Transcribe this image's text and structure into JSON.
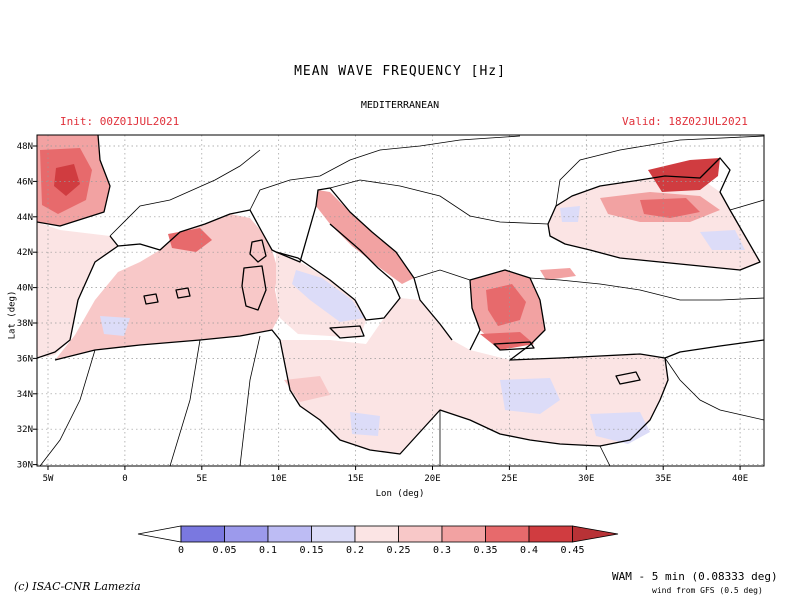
{
  "header": {
    "title": "MEAN WAVE FREQUENCY [Hz]",
    "region": "MEDITERRANEAN",
    "init": "Init: 00Z01JUL2021",
    "valid": "Valid: 18Z02JUL2021"
  },
  "axes": {
    "xlabel": "Lon (deg)",
    "ylabel": "Lat (deg)",
    "lon_ticks": [
      "5W",
      "0",
      "5E",
      "10E",
      "15E",
      "20E",
      "25E",
      "30E",
      "35E",
      "40E"
    ],
    "lat_ticks": [
      "48N",
      "46N",
      "44N",
      "42N",
      "40N",
      "38N",
      "36N",
      "34N",
      "32N",
      "30N"
    ]
  },
  "legend": {
    "labels": [
      "0",
      "0.05",
      "0.1",
      "0.15",
      "0.2",
      "0.25",
      "0.3",
      "0.35",
      "0.4",
      "0.45"
    ],
    "colors": [
      "#7a78e0",
      "#9c9aec",
      "#bdbcf4",
      "#dcdcf8",
      "#fbe4e4",
      "#f8c8c8",
      "#f2a2a2",
      "#e76a6c",
      "#d03c40"
    ]
  },
  "footer": {
    "credit": "(c) ISAC-CNR Lamezia",
    "model": "WAM - 5 min (0.08333 deg)",
    "wind": "wind from GFS (0.5 deg)"
  },
  "colors": {
    "sea_base": "#fbe4e4",
    "accent_red": "#e0303a"
  }
}
